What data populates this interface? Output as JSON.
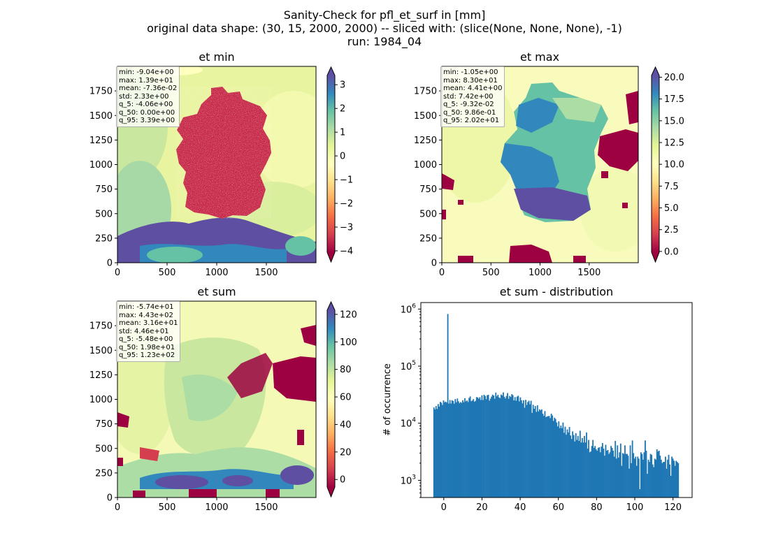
{
  "suptitle": {
    "line1": "Sanity-Check for pfl_et_surf in [mm]",
    "line2": "original data shape: (30, 15, 2000, 2000) -- sliced with: (slice(None, None, None), -1)",
    "line3": "run: 1984_04"
  },
  "colormap": "Spectral",
  "chart_data": [
    {
      "type": "heatmap",
      "title": "et min",
      "xlim": [
        0,
        2000
      ],
      "ylim": [
        0,
        2000
      ],
      "xticks": [
        0,
        500,
        1000,
        1500
      ],
      "yticks": [
        0,
        250,
        500,
        750,
        1000,
        1250,
        1500,
        1750
      ],
      "colorbar": {
        "range": [
          -4.06,
          3.39
        ],
        "ticks": [
          -4,
          -3,
          -2,
          -1,
          0,
          1,
          2,
          3
        ],
        "tick_labels": [
          "−4",
          "−3",
          "−2",
          "−1",
          "0",
          "1",
          "2",
          "3"
        ],
        "extend": "both"
      },
      "stats": [
        "min: -9.04e+00",
        "max: 1.39e+01",
        "mean: -7.36e-02",
        "std: 2.33e+00",
        "q_5: -4.06e+00",
        "q_50: 0.00e+00",
        "q_95: 3.39e+00"
      ]
    },
    {
      "type": "heatmap",
      "title": "et max",
      "xlim": [
        0,
        2000
      ],
      "ylim": [
        0,
        2000
      ],
      "xticks": [
        0,
        500,
        1000,
        1500
      ],
      "yticks": [
        0,
        250,
        500,
        750,
        1000,
        1250,
        1500,
        1750
      ],
      "colorbar": {
        "range": [
          -0.0932,
          20.2
        ],
        "ticks": [
          0,
          2.5,
          5,
          7.5,
          10,
          12.5,
          15,
          17.5,
          20
        ],
        "tick_labels": [
          "0.0",
          "2.5",
          "5.0",
          "7.5",
          "10.0",
          "12.5",
          "15.0",
          "17.5",
          "20.0"
        ],
        "extend": "both"
      },
      "stats": [
        "min: -1.05e+00",
        "max: 8.30e+01",
        "mean: 4.41e+00",
        "std: 7.42e+00",
        "q_5: -9.32e-02",
        "q_50: 9.86e-01",
        "q_95: 2.02e+01"
      ]
    },
    {
      "type": "heatmap",
      "title": "et sum",
      "xlim": [
        0,
        2000
      ],
      "ylim": [
        0,
        2000
      ],
      "xticks": [
        0,
        500,
        1000,
        1500
      ],
      "yticks": [
        0,
        250,
        500,
        750,
        1000,
        1250,
        1500,
        1750
      ],
      "colorbar": {
        "range": [
          -5.48,
          123
        ],
        "ticks": [
          0,
          20,
          40,
          60,
          80,
          100,
          120
        ],
        "tick_labels": [
          "0",
          "20",
          "40",
          "60",
          "80",
          "100",
          "120"
        ],
        "extend": "both"
      },
      "stats": [
        "min: -5.74e+01",
        "max: 4.43e+02",
        "mean: 3.16e+01",
        "std: 4.46e+01",
        "q_5: -5.48e+00",
        "q_50: 1.98e+01",
        "q_95: 1.23e+02"
      ]
    },
    {
      "type": "bar",
      "title": "et sum - distribution",
      "ylabel": "# of occurrence",
      "yscale": "log",
      "xlim": [
        -12,
        130
      ],
      "ylim": [
        500,
        1300000
      ],
      "xticks": [
        0,
        20,
        40,
        60,
        80,
        100,
        120
      ],
      "yticks": [
        1000,
        10000,
        100000,
        1000000
      ],
      "ytick_labels": [
        [
          "10",
          "3"
        ],
        [
          "10",
          "4"
        ],
        [
          "10",
          "5"
        ],
        [
          "10",
          "6"
        ]
      ],
      "bar_color": "#1f77b4",
      "bin_range": [
        -5.48,
        123
      ],
      "values": [
        18900,
        17500,
        20000,
        17800,
        21700,
        19600,
        23700,
        22800,
        20900,
        25100,
        23300,
        23900,
        23000,
        820000,
        22100,
        25500,
        22100,
        25300,
        24500,
        22000,
        26500,
        23300,
        27100,
        24200,
        22400,
        23500,
        22700,
        25300,
        23400,
        27400,
        24200,
        25000,
        23500,
        27800,
        29500,
        24300,
        25000,
        26500,
        23800,
        24700,
        28700,
        28300,
        26800,
        28600,
        25500,
        30800,
        25500,
        31600,
        30100,
        26500,
        31000,
        31500,
        24800,
        27000,
        29300,
        31700,
        30500,
        26900,
        34400,
        29700,
        31500,
        28400,
        27500,
        31800,
        30700,
        34700,
        29100,
        27200,
        30100,
        33800,
        26900,
        30100,
        28900,
        32300,
        31100,
        25100,
        28700,
        24800,
        29300,
        30300,
        24100,
        28400,
        25300,
        22300,
        25300,
        18700,
        25700,
        20900,
        23500,
        24800,
        21500,
        24700,
        15200,
        21000,
        17900,
        20000,
        15800,
        20600,
        16100,
        17500,
        16800,
        17500,
        14700,
        13500,
        16300,
        12800,
        13100,
        13300,
        13400,
        12300,
        14700,
        13700,
        11000,
        12500,
        11900,
        10300,
        8800,
        10800,
        8200,
        9100,
        8200,
        10300,
        6800,
        8700,
        6300,
        7800,
        6900,
        8600,
        6100,
        5300,
        7200,
        6200,
        4800,
        6700,
        5100,
        6000,
        4900,
        7400,
        4600,
        5500,
        4600,
        6000,
        4600,
        6900,
        3600,
        5100,
        3100,
        3200,
        4000,
        5100,
        3700,
        4000,
        3500,
        3300,
        3700,
        3800,
        3100,
        3900,
        4500,
        3600,
        2700,
        4200,
        3300,
        3400,
        2900,
        3100,
        4000,
        3700,
        3300,
        2600,
        4900,
        2400,
        4100,
        2500,
        3100,
        4400,
        1800,
        3000,
        2900,
        4100,
        2900,
        2900,
        2700,
        1600,
        4100,
        2000,
        5000,
        3000,
        2400,
        2600,
        1800,
        2600,
        2400,
        700,
        3100,
        2900,
        2300,
        3100,
        5000,
        3300,
        1300,
        2300,
        2100,
        2900,
        2800,
        1900,
        1700,
        2400,
        2300,
        3500,
        3200,
        3300,
        2700,
        2300,
        2000,
        2100,
        2100,
        2600,
        1600,
        2300,
        2800,
        1900,
        1200,
        2600,
        2400,
        2200,
        1800,
        2200,
        2100,
        2000
      ]
    }
  ]
}
